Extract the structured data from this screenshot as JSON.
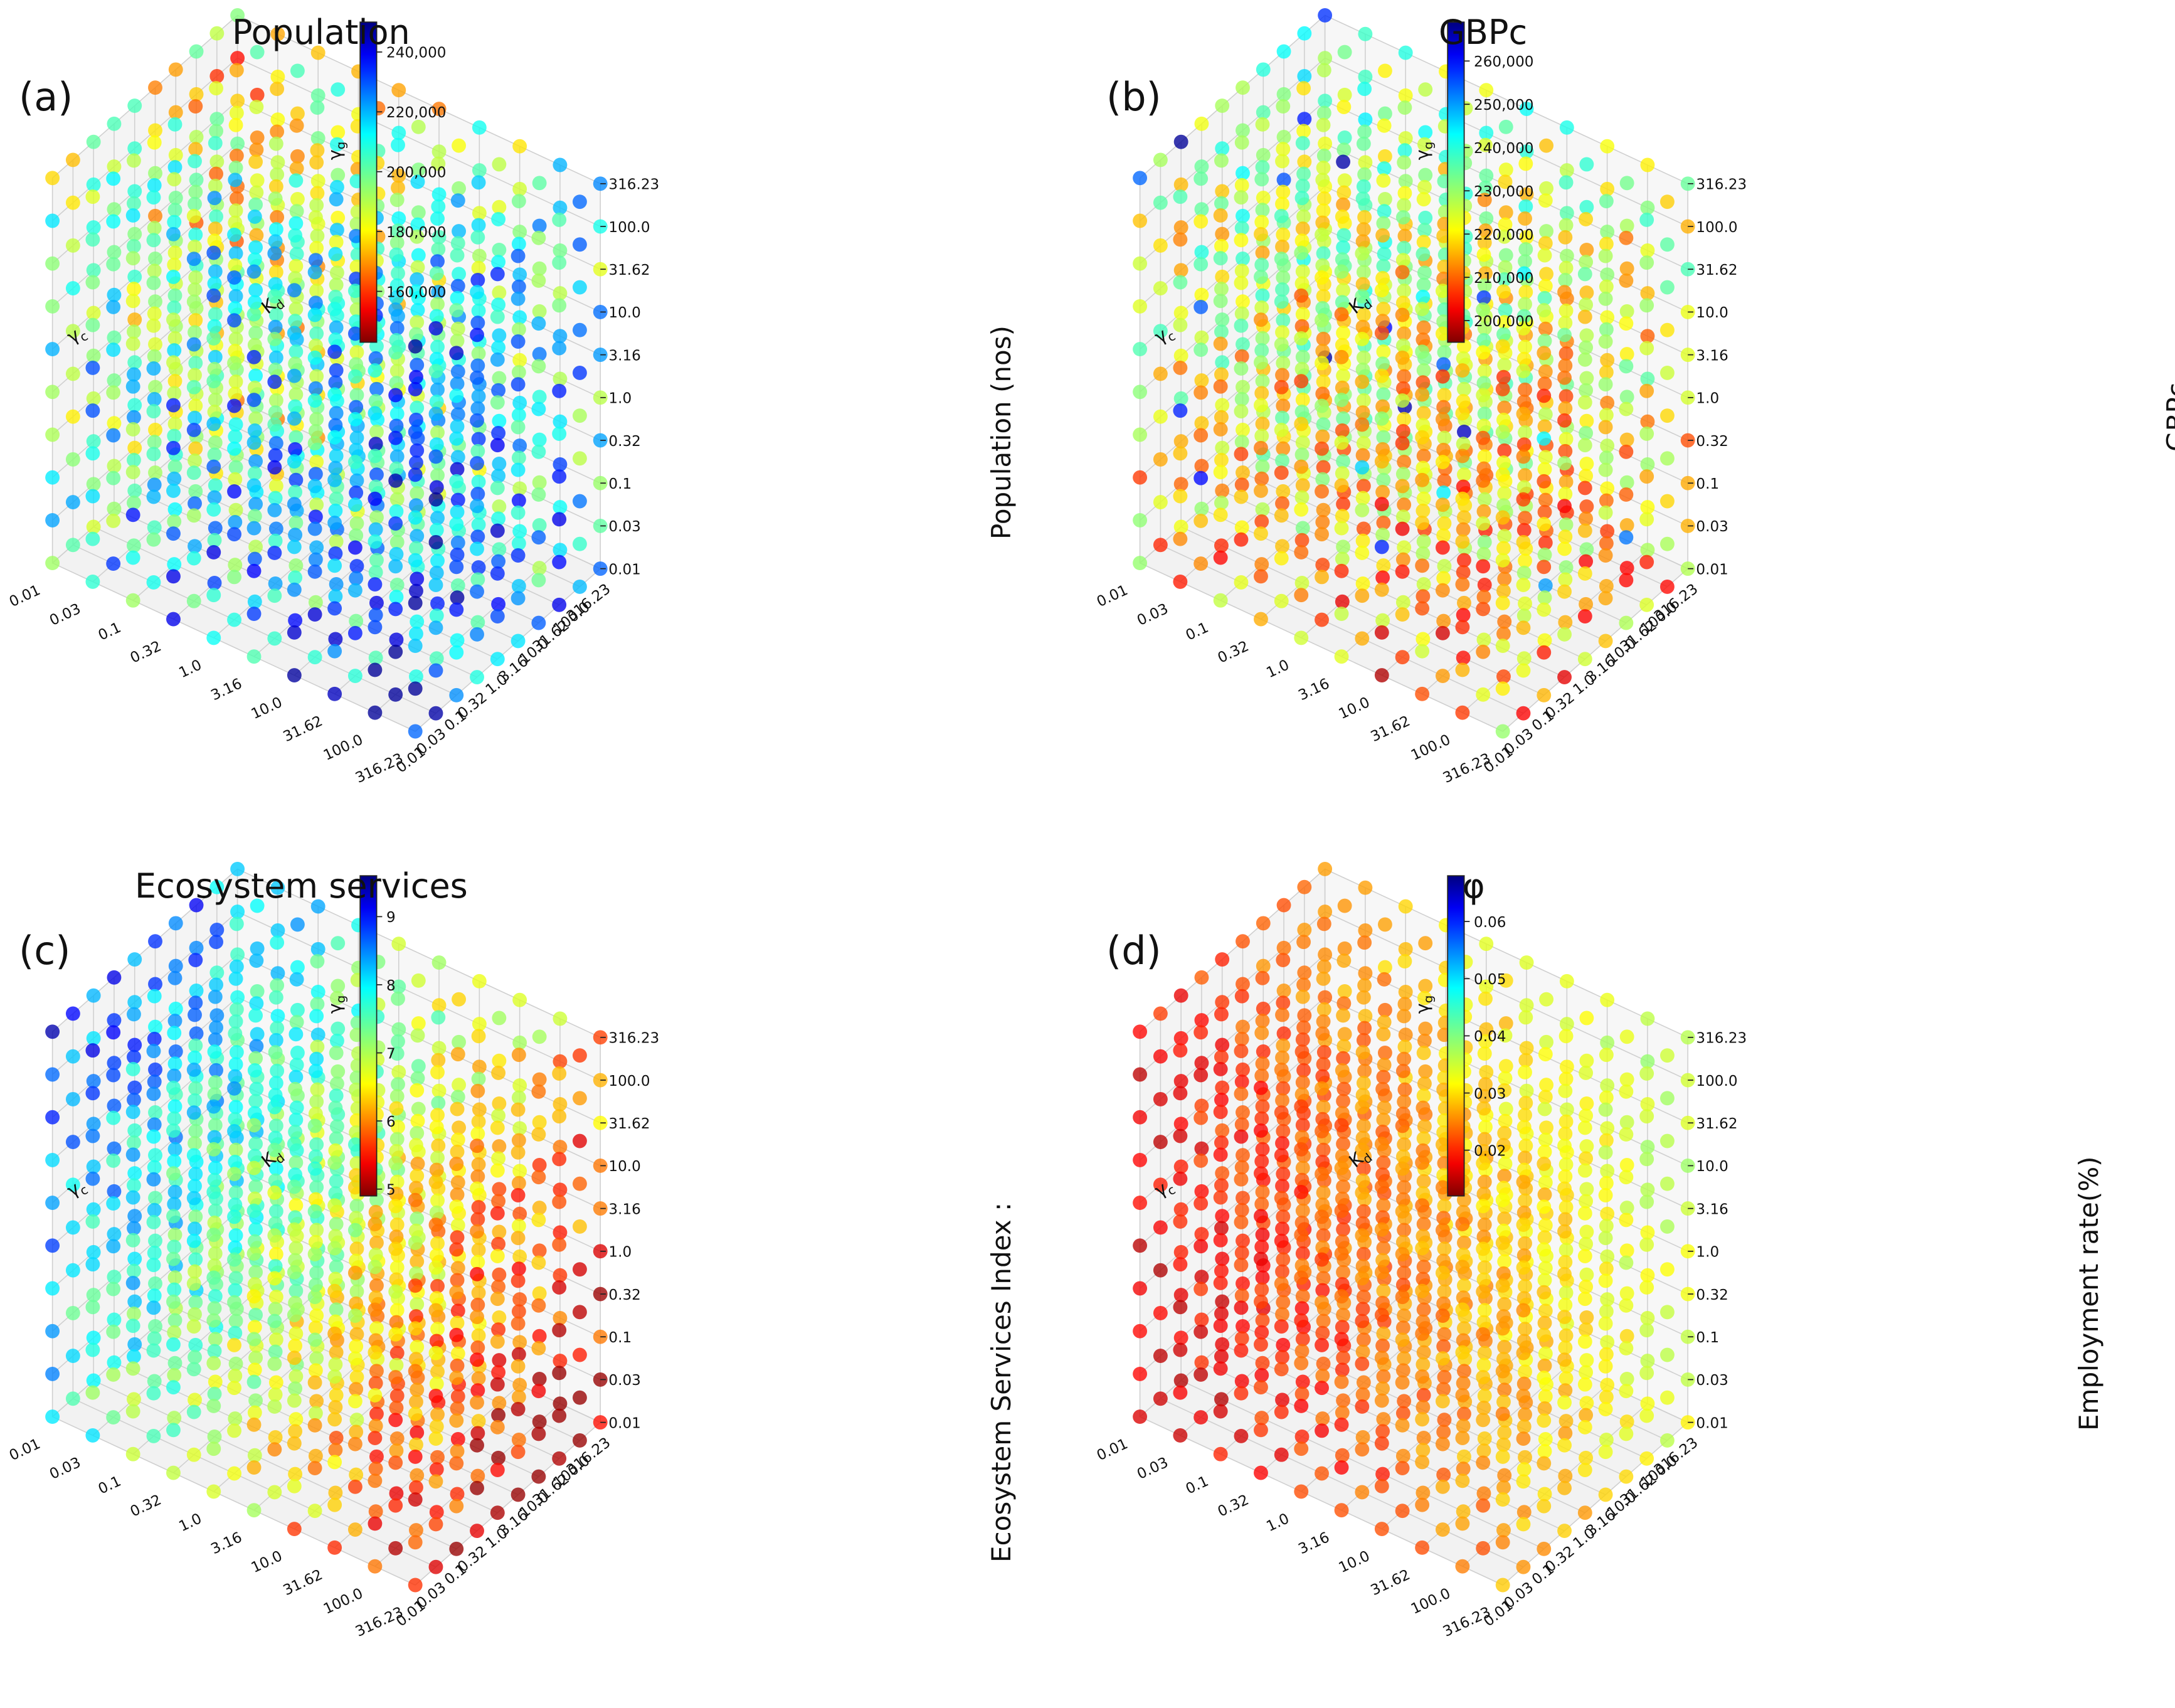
{
  "figure": {
    "axis_symbols": {
      "gamma_g": "γ",
      "gamma_g_sub": "g",
      "gamma_c": "γ",
      "gamma_c_sub": "c",
      "k_d": "K",
      "k_d_sub": "d"
    },
    "colormap": "jet_reversed",
    "colors": {
      "background": "#ffffff",
      "pane": "#f2f2f2",
      "grid": "#cfcfcf",
      "text": "#111111"
    }
  },
  "chart_data": [
    {
      "type": "scatter",
      "subtype": "3d-scatter",
      "panel_letter": "(a)",
      "title": "Population",
      "xlabel": "γc",
      "ylabel": "Kd",
      "zlabel": "γg",
      "x_ticks": [
        "0.01",
        "0.03",
        "0.1",
        "0.32",
        "1.0",
        "3.16",
        "10.0",
        "31.62",
        "100.0",
        "316.23"
      ],
      "y_ticks": [
        "0.01",
        "0.03",
        "0.1",
        "0.32",
        "1.0",
        "3.16",
        "10.0",
        "31.62",
        "100.0",
        "316.23"
      ],
      "z_ticks": [
        "0.01",
        "0.03",
        "0.1",
        "0.32",
        "1.0",
        "3.16",
        "10.0",
        "31.62",
        "100.0",
        "316.23"
      ],
      "colorbar": {
        "label": "Population (nos)",
        "range": [
          143000,
          250000
        ],
        "ticks": [
          "160,000",
          "180,000",
          "200,000",
          "220,000",
          "240,000"
        ],
        "tick_values": [
          160000,
          180000,
          200000,
          220000,
          240000
        ]
      },
      "trend": "higher population at large γc / small Kd; lower (orange-red) toward large Kd and large γg"
    },
    {
      "type": "scatter",
      "subtype": "3d-scatter",
      "panel_letter": "(b)",
      "title": "GBPc",
      "xlabel": "γc",
      "ylabel": "Kd",
      "zlabel": "γg",
      "x_ticks": [
        "0.01",
        "0.03",
        "0.1",
        "0.32",
        "1.0",
        "3.16",
        "10.0",
        "31.62",
        "100.0",
        "316.23"
      ],
      "y_ticks": [
        "0.01",
        "0.03",
        "0.1",
        "0.32",
        "1.0",
        "3.16",
        "10.0",
        "31.62",
        "100.0",
        "316.23"
      ],
      "z_ticks": [
        "0.01",
        "0.03",
        "0.1",
        "0.32",
        "1.0",
        "3.16",
        "10.0",
        "31.62",
        "100.0",
        "316.23"
      ],
      "colorbar": {
        "label": "GBPc",
        "range": [
          195000,
          269000
        ],
        "ticks": [
          "200,000",
          "210,000",
          "220,000",
          "230,000",
          "240,000",
          "250,000",
          "260,000"
        ],
        "tick_values": [
          200000,
          210000,
          220000,
          230000,
          240000,
          250000,
          260000
        ]
      },
      "trend": "mostly orange-yellow (210,000-225,000); bluer points at small γc with large Kd and high γg"
    },
    {
      "type": "scatter",
      "subtype": "3d-scatter",
      "panel_letter": "(c)",
      "title": "Ecosystem services",
      "xlabel": "γc",
      "ylabel": "Kd",
      "zlabel": "γg",
      "x_ticks": [
        "0.01",
        "0.03",
        "0.1",
        "0.32",
        "1.0",
        "3.16",
        "10.0",
        "31.62",
        "100.0",
        "316.23"
      ],
      "y_ticks": [
        "0.01",
        "0.03",
        "0.1",
        "0.32",
        "1.0",
        "3.16",
        "10.0",
        "31.62",
        "100.0",
        "316.23"
      ],
      "z_ticks": [
        "0.01",
        "0.03",
        "0.1",
        "0.32",
        "1.0",
        "3.16",
        "10.0",
        "31.62",
        "100.0",
        "316.23"
      ],
      "colorbar": {
        "label": "Ecosystem Services Index :",
        "range": [
          4.9,
          9.6
        ],
        "ticks": [
          "5",
          "6",
          "7",
          "8",
          "9"
        ],
        "tick_values": [
          5,
          6,
          7,
          8,
          9
        ]
      },
      "trend": "high index (blue) at small γc and high γg; lower (orange-red) at large γc"
    },
    {
      "type": "scatter",
      "subtype": "3d-scatter",
      "panel_letter": "(d)",
      "title": "φ",
      "xlabel": "γc",
      "ylabel": "Kd",
      "zlabel": "γg",
      "x_ticks": [
        "0.01",
        "0.03",
        "0.1",
        "0.32",
        "1.0",
        "3.16",
        "10.0",
        "31.62",
        "100.0",
        "316.23"
      ],
      "y_ticks": [
        "0.01",
        "0.03",
        "0.1",
        "0.32",
        "1.0",
        "3.16",
        "10.0",
        "31.62",
        "100.0",
        "316.23"
      ],
      "z_ticks": [
        "0.01",
        "0.03",
        "0.1",
        "0.32",
        "1.0",
        "3.16",
        "10.0",
        "31.62",
        "100.0",
        "316.23"
      ],
      "colorbar": {
        "label": "Employment rate(%)",
        "range": [
          0.012,
          0.068
        ],
        "ticks": [
          "0.02",
          "0.03",
          "0.04",
          "0.05",
          "0.06"
        ],
        "tick_values": [
          0.02,
          0.03,
          0.04,
          0.05,
          0.06
        ]
      },
      "trend": "dark red at small γc / small Kd, shifting to orange-yellow toward large γc and large Kd"
    }
  ]
}
